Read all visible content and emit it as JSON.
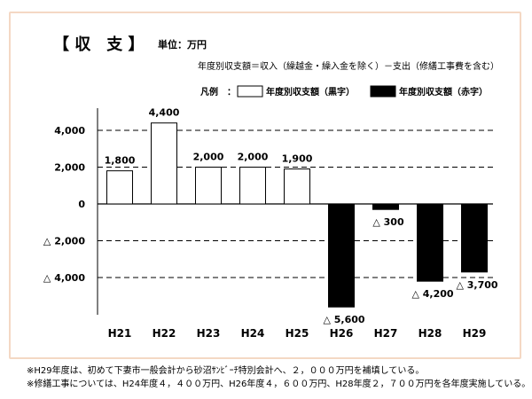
{
  "header": {
    "title": "【 収　支 】",
    "unit": "単位：万円",
    "formula": "年度別収支額＝収入（繰越金・繰入金を除く）－支出（修繕工事費を含む）"
  },
  "legend": {
    "label": "凡例　：",
    "items": [
      {
        "name": "年度別収支額（黒字）",
        "fill": "#ffffff"
      },
      {
        "name": "年度別収支額（赤字）",
        "fill": "#000000"
      }
    ]
  },
  "chart_data": {
    "type": "bar",
    "categories": [
      "H21",
      "H22",
      "H23",
      "H24",
      "H25",
      "H26",
      "H27",
      "H28",
      "H29"
    ],
    "values": [
      1800,
      4400,
      2000,
      2000,
      1900,
      -5600,
      -300,
      -4200,
      -3700
    ],
    "data_labels": [
      "1,800",
      "4,400",
      "2,000",
      "2,000",
      "1,900",
      "△ 5,600",
      "△ 300",
      "△ 4,200",
      "△ 3,700"
    ],
    "yticks": [
      4000,
      2000,
      0,
      -2000,
      -4000
    ],
    "ytick_labels": [
      "4,000",
      "2,000",
      "0",
      "△ 2,000",
      "△ 4,000"
    ],
    "ylim": [
      -6000,
      5000
    ],
    "grid": "dashed-horizontal",
    "colors": {
      "surplus": "#ffffff",
      "deficit": "#000000"
    }
  },
  "notes": [
    "※H29年度は、初めて下妻市一般会計から砂沼ｻﾝﾋﾞｰﾁ特別会計へ、２，０００万円を補填している。",
    "※修繕工事については、H24年度４，４００万円、H26年度４，６００万円、H28年度２，７００万円を各年度実施している。"
  ]
}
